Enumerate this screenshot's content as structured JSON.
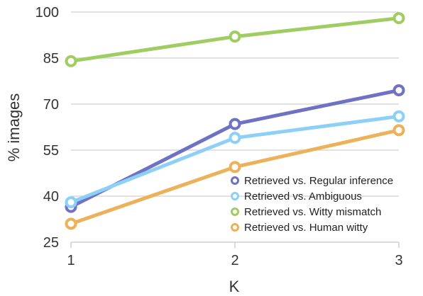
{
  "chart_data": {
    "type": "line",
    "x": [
      1,
      2,
      3
    ],
    "x_tick_labels": [
      "1",
      "2",
      "3"
    ],
    "xlabel": "K",
    "ylabel": "% images",
    "ylim": [
      25,
      100
    ],
    "y_ticks": [
      25,
      40,
      55,
      70,
      85,
      100
    ],
    "grid": "horizontal",
    "legend_position": "bottom-right",
    "series": [
      {
        "name": "Retrieved vs. Regular inference",
        "color": "#6f72c3",
        "values": [
          36.5,
          63.5,
          74.5
        ]
      },
      {
        "name": "Retrieved vs. Ambiguous",
        "color": "#8dd0f7",
        "values": [
          38,
          59,
          66
        ]
      },
      {
        "name": "Retrieved vs. Witty mismatch",
        "color": "#9fcd62",
        "values": [
          84,
          92,
          98
        ]
      },
      {
        "name": "Retrieved vs. Human witty",
        "color": "#ecb159",
        "values": [
          31,
          49.5,
          61.5
        ]
      }
    ],
    "legend_order": [
      0,
      1,
      2,
      3
    ]
  }
}
